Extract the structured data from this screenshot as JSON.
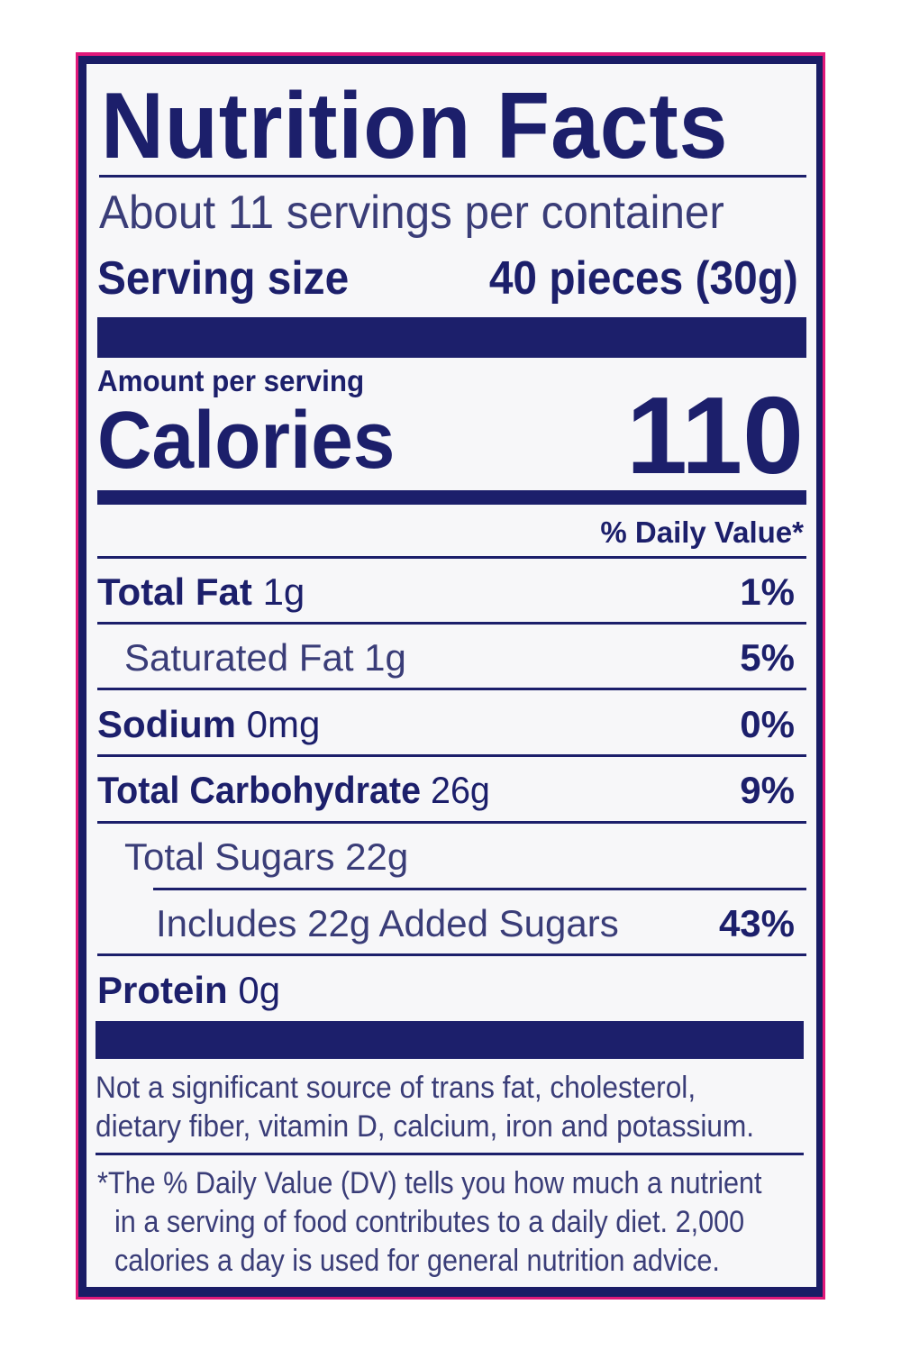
{
  "label": {
    "title": "Nutrition Facts",
    "servings": "About 11 servings per container",
    "serving_size_label": "Serving size",
    "serving_size_value": "40 pieces (30g)",
    "amount_per_serving": "Amount per serving",
    "calories_label": "Calories",
    "calories_value": "110",
    "dv_header": "% Daily Value*",
    "nutrients": [
      {
        "name": "Total Fat",
        "amount": "1g",
        "dv": "1%"
      },
      {
        "name": "Saturated Fat",
        "amount": "1g",
        "dv": "5%"
      },
      {
        "name": "Sodium",
        "amount": "0mg",
        "dv": "0%"
      },
      {
        "name": "Total Carbohydrate",
        "amount": "26g",
        "dv": "9%"
      },
      {
        "name": "Total Sugars",
        "amount": "22g",
        "dv": ""
      },
      {
        "name": "Includes 22g Added Sugars",
        "amount": "",
        "dv": "43%"
      },
      {
        "name": "Protein",
        "amount": "0g",
        "dv": ""
      }
    ],
    "not_significant": [
      "Not a significant source of trans fat, cholesterol,",
      "dietary fiber, vitamin D, calcium, iron and potassium."
    ],
    "footnote": [
      "*The % Daily Value (DV) tells you how much a nutrient",
      "in a serving of food contributes to a daily diet. 2,000",
      "calories a day is used for general nutrition advice."
    ]
  },
  "colors": {
    "ink": "#1c1f6b",
    "border_outer": "#e0197a",
    "background": "#f7f7f9"
  }
}
